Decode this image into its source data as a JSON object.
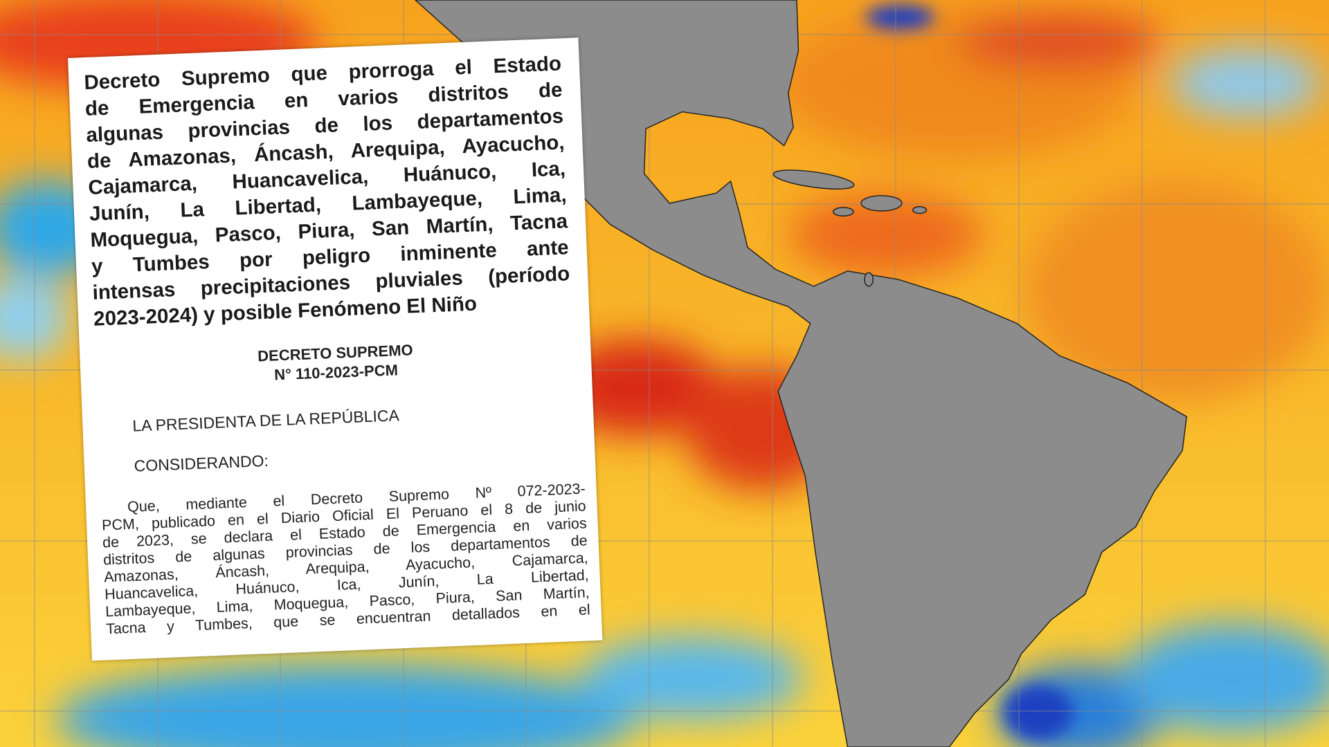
{
  "document": {
    "title_lines": [
      "Decreto Supremo que prorroga el Estado",
      "de Emergencia en varios distritos de",
      "algunas provincias de los departamentos",
      "de Amazonas, Áncash, Arequipa, Ayacucho,",
      "Cajamarca, Huancavelica, Huánuco, Ica,",
      "Junín, La Libertad, Lambayeque, Lima,",
      "Moquegua, Pasco, Piura, San Martín, Tacna",
      "y Tumbes por peligro inminente ante",
      "intensas precipitaciones pluviales (período",
      "2023-2024) y posible Fenómeno El Niño"
    ],
    "decree_heading": [
      "DECRETO SUPREMO",
      "N° 110-2023-PCM"
    ],
    "issuer": "LA PRESIDENTA DE LA REPÚBLICA",
    "section": "CONSIDERANDO:",
    "body_lines": [
      "Que, mediante el Decreto Supremo Nº 072-2023-",
      "PCM, publicado en el Diario Oficial El Peruano el 8 de junio",
      "de 2023, se declara el Estado de Emergencia en varios",
      "distritos de algunas provincias de los departamentos de",
      "Amazonas, Áncash, Arequipa, Ayacucho, Cajamarca,",
      "Huancavelica, Huánuco, Ica, Junín, La Libertad,",
      "Lambayeque, Lima, Moquegua, Pasco, Piura, San Martín,",
      "Tacna y Tumbes, que se encuentran detallados en el"
    ]
  }
}
